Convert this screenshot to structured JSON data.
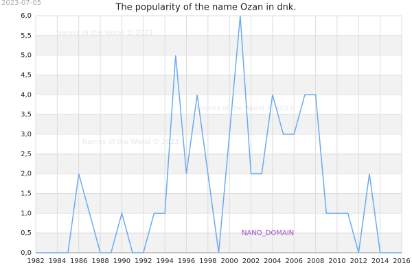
{
  "chart_data": {
    "type": "line",
    "title": "The popularity of the name Ozan in dnk.",
    "date_stamp": "2023-07-05",
    "annotations": [
      "Names of the World © 2023",
      "Names of the World © 2023",
      "Names of the World © 2023",
      "NANO_DOMAIN"
    ],
    "x": [
      1982,
      1983,
      1984,
      1985,
      1986,
      1987,
      1988,
      1989,
      1990,
      1991,
      1992,
      1993,
      1994,
      1995,
      1996,
      1997,
      1998,
      1999,
      2000,
      2001,
      2002,
      2003,
      2004,
      2005,
      2006,
      2007,
      2008,
      2009,
      2010,
      2011,
      2012,
      2013,
      2014,
      2015,
      2016
    ],
    "values": [
      0,
      0,
      0,
      0,
      2,
      1,
      0,
      0,
      1,
      0,
      0,
      1,
      1,
      5,
      2,
      4,
      2,
      0,
      3,
      6,
      2,
      2,
      4,
      3,
      3,
      4,
      4,
      1,
      1,
      1,
      0,
      2,
      0,
      0,
      0
    ],
    "color": "#6aaaf0",
    "xlim": [
      1982,
      2016
    ],
    "xticks": [
      1982,
      1984,
      1986,
      1988,
      1990,
      1992,
      1994,
      1996,
      1998,
      2000,
      2002,
      2004,
      2006,
      2008,
      2010,
      2012,
      2014,
      2016
    ],
    "ylim": [
      0,
      6
    ],
    "yticks": [
      {
        "value": 0,
        "label": "0,0"
      },
      {
        "value": 0.5,
        "label": "0,5"
      },
      {
        "value": 1,
        "label": "1,0"
      },
      {
        "value": 1.5,
        "label": "1,5"
      },
      {
        "value": 2,
        "label": "2,0"
      },
      {
        "value": 2.5,
        "label": "2,5"
      },
      {
        "value": 3,
        "label": "3,0"
      },
      {
        "value": 3.5,
        "label": "3,5"
      },
      {
        "value": 4,
        "label": "4,0"
      },
      {
        "value": 4.5,
        "label": "4,5"
      },
      {
        "value": 5,
        "label": "5,0"
      },
      {
        "value": 5.5,
        "label": "5,5"
      },
      {
        "value": 6,
        "label": "6,0"
      }
    ],
    "grid": true
  }
}
